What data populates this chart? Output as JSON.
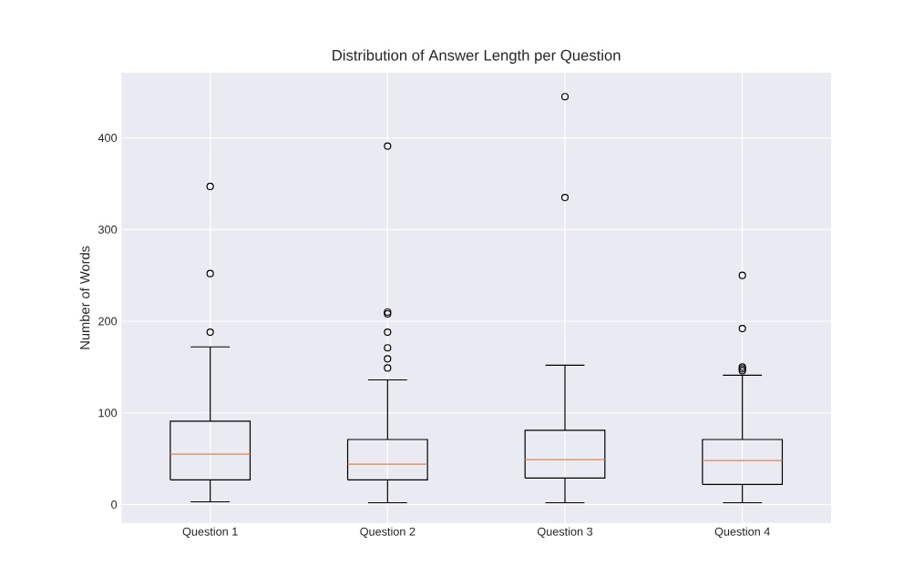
{
  "chart_data": {
    "type": "box",
    "title": "Distribution of Answer Length per Question",
    "ylabel": "Number of Words",
    "categories": [
      "Question 1",
      "Question 2",
      "Question 3",
      "Question 4"
    ],
    "boxes": [
      {
        "low": 3,
        "q1": 27,
        "median": 55,
        "q3": 91,
        "high": 172,
        "outliers": [
          188,
          252,
          347
        ]
      },
      {
        "low": 2,
        "q1": 27,
        "median": 44,
        "q3": 71,
        "high": 136,
        "outliers": [
          149,
          159,
          171,
          188,
          208,
          210,
          391
        ]
      },
      {
        "low": 2,
        "q1": 29,
        "median": 49,
        "q3": 81,
        "high": 152,
        "outliers": [
          335,
          445
        ]
      },
      {
        "low": 2,
        "q1": 22,
        "median": 48,
        "q3": 71,
        "high": 141,
        "outliers": [
          146,
          148,
          150,
          192,
          250
        ]
      }
    ],
    "ylim": [
      -20,
      471
    ],
    "yticks": [
      0,
      100,
      200,
      300,
      400
    ],
    "grid": true
  }
}
